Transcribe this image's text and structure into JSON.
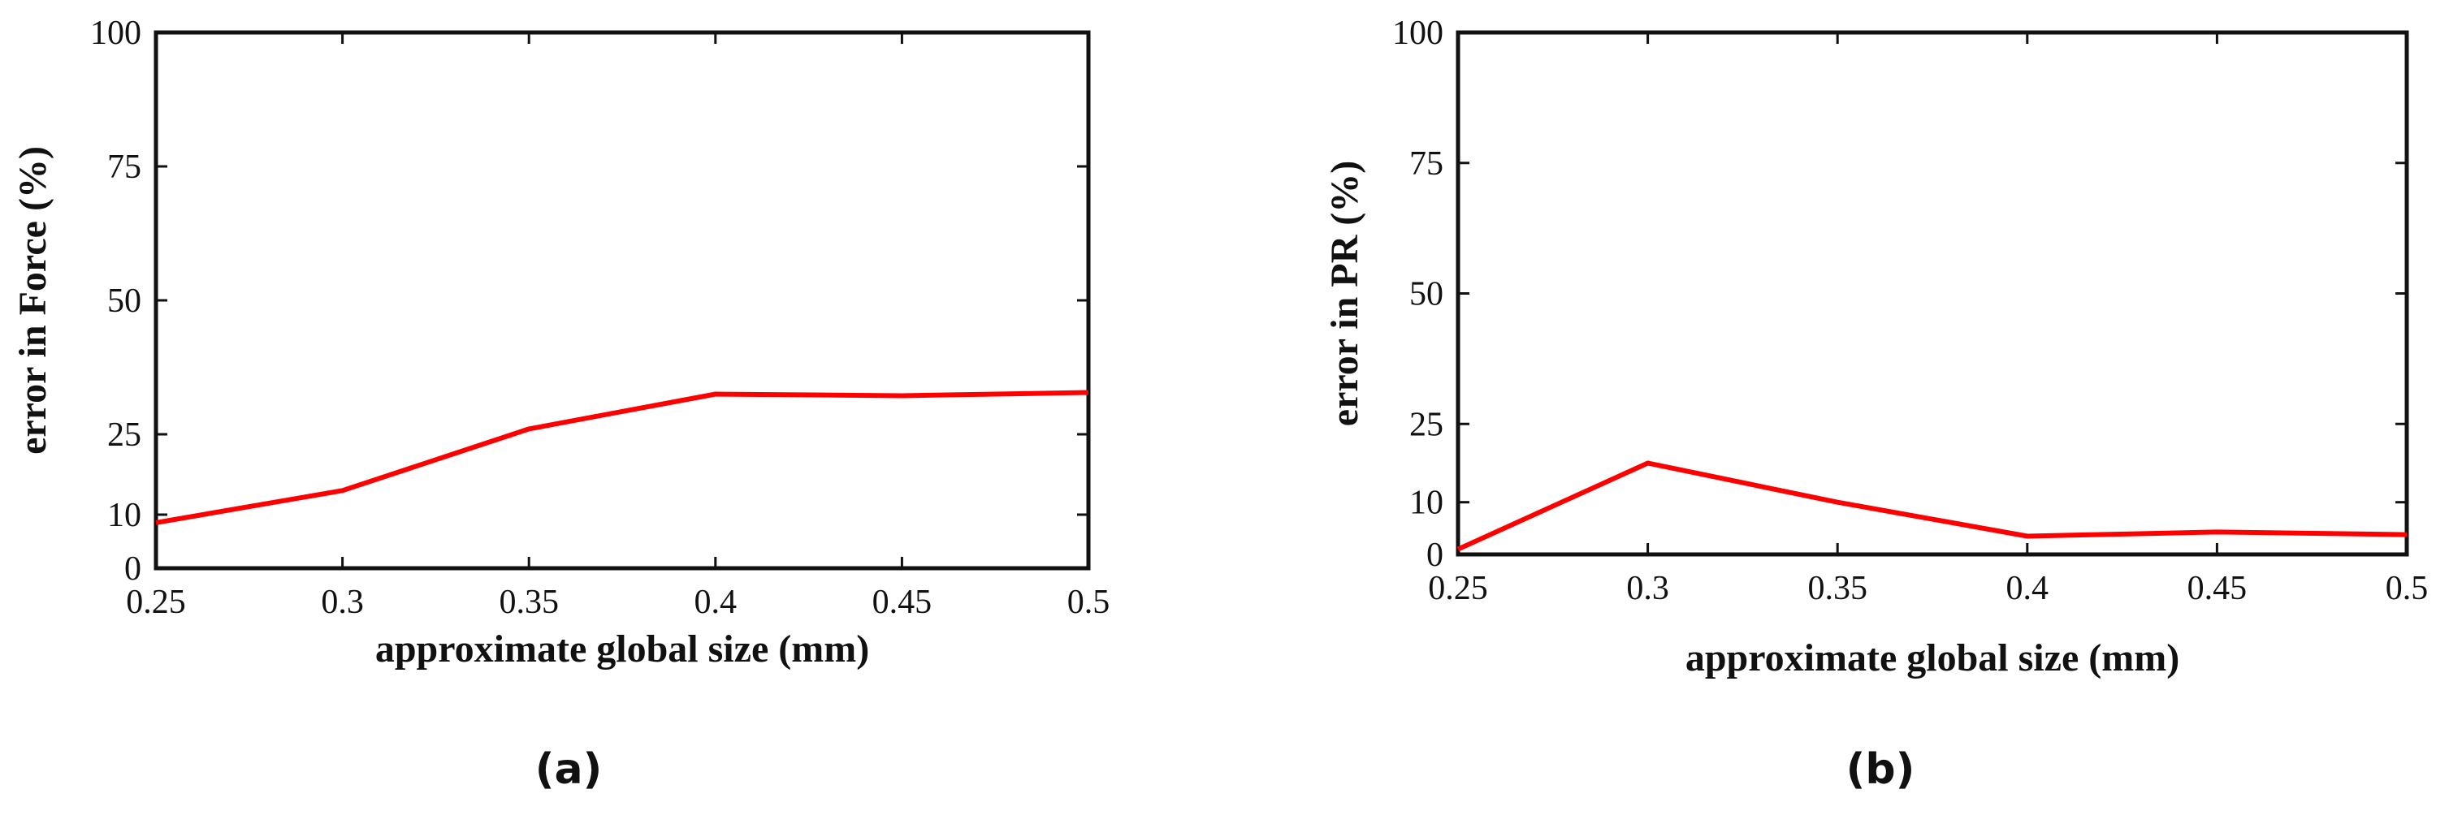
{
  "chart_data": [
    {
      "type": "line",
      "caption": "(a)",
      "xlabel": "approximate global size (mm)",
      "ylabel": "error in Force (%)",
      "x": [
        0.25,
        0.3,
        0.35,
        0.4,
        0.45,
        0.5
      ],
      "xticks": [
        "0.25",
        "0.3",
        "0.35",
        "0.4",
        "0.45",
        "0.5"
      ],
      "yticks": [
        "0",
        "10",
        "25",
        "50",
        "75",
        "100"
      ],
      "xlim": [
        0.25,
        0.5
      ],
      "ylim": [
        0,
        100
      ],
      "series": [
        {
          "values": [
            8.5,
            14.5,
            26,
            32.5,
            32.2,
            32.8
          ],
          "color": "#ff0000"
        }
      ]
    },
    {
      "type": "line",
      "caption": "(b)",
      "xlabel": "approximate global size (mm)",
      "ylabel": "error in PR (%)",
      "x": [
        0.25,
        0.3,
        0.35,
        0.4,
        0.45,
        0.5
      ],
      "xticks": [
        "0.25",
        "0.3",
        "0.35",
        "0.4",
        "0.45",
        "0.5"
      ],
      "yticks": [
        "0",
        "10",
        "25",
        "50",
        "75",
        "100"
      ],
      "xlim": [
        0.25,
        0.5
      ],
      "ylim": [
        0,
        100
      ],
      "series": [
        {
          "values": [
            1,
            17.5,
            10,
            3.5,
            4.3,
            3.8
          ],
          "color": "#ff0000"
        }
      ]
    }
  ]
}
